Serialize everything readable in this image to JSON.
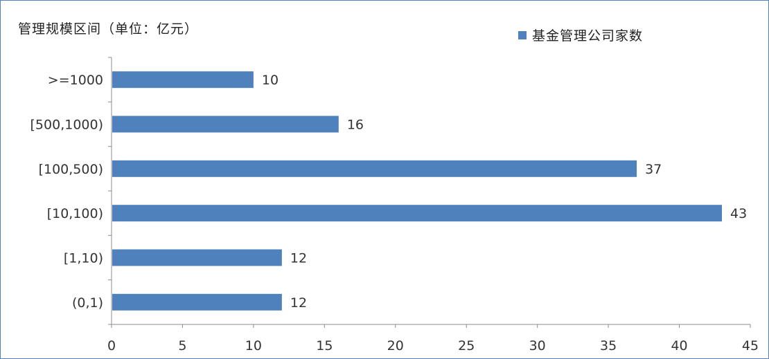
{
  "chart_data": {
    "type": "bar",
    "orientation": "horizontal",
    "ylabel": "管理规模区间（单位：亿元）",
    "categories": [
      ">=1000",
      "[500,1000)",
      "[100,500)",
      "[10,100)",
      "[1,10)",
      "(0,1)"
    ],
    "series": [
      {
        "name": "基金管理公司家数",
        "values": [
          10,
          16,
          37,
          43,
          12,
          12
        ],
        "color": "#4f81bd"
      }
    ],
    "xlim": [
      0,
      45
    ],
    "xticks": [
      0,
      5,
      10,
      15,
      20,
      25,
      30,
      35,
      40,
      45
    ],
    "data_labels": true,
    "grid": false,
    "legend_position": "top-right"
  }
}
